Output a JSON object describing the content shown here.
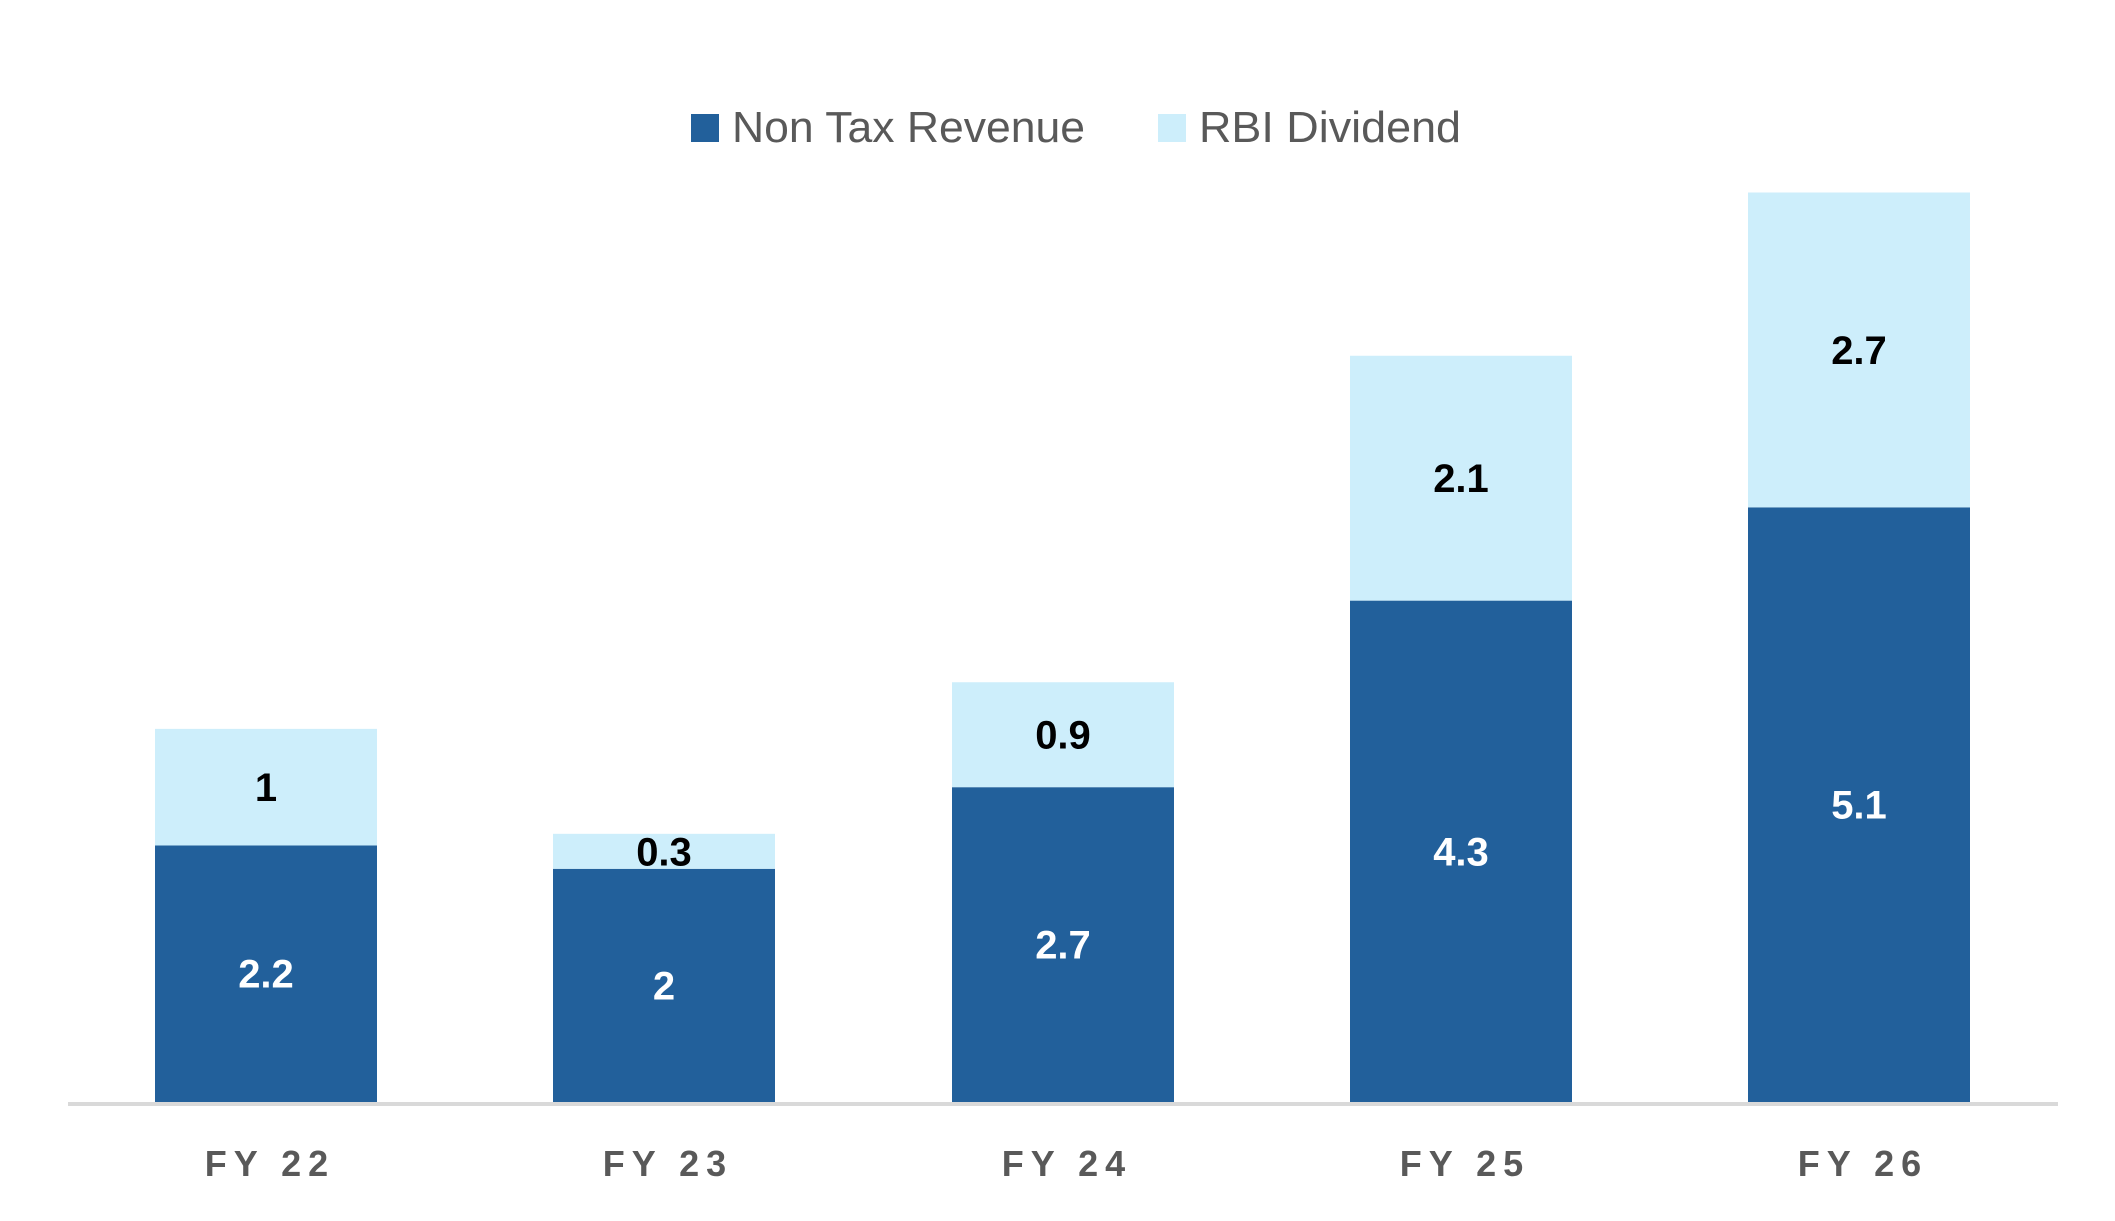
{
  "chart_data": {
    "type": "bar",
    "stacked": true,
    "categories": [
      "FY 22",
      "FY 23",
      "FY 24",
      "FY 25",
      "FY 26"
    ],
    "series": [
      {
        "name": "Non Tax Revenue",
        "values": [
          2.2,
          2,
          2.7,
          4.3,
          5.1
        ],
        "color": "#22609b",
        "label_color": "#ffffff"
      },
      {
        "name": "RBI Dividend",
        "values": [
          1,
          0.3,
          0.9,
          2.1,
          2.7
        ],
        "color": "#cdeefb",
        "label_color": "#000000"
      }
    ],
    "title": "",
    "xlabel": "",
    "ylabel": "",
    "ylim": [
      0,
      7.8
    ],
    "grid": false,
    "legend_position": "top",
    "axis_color": "#d9d9d9"
  }
}
